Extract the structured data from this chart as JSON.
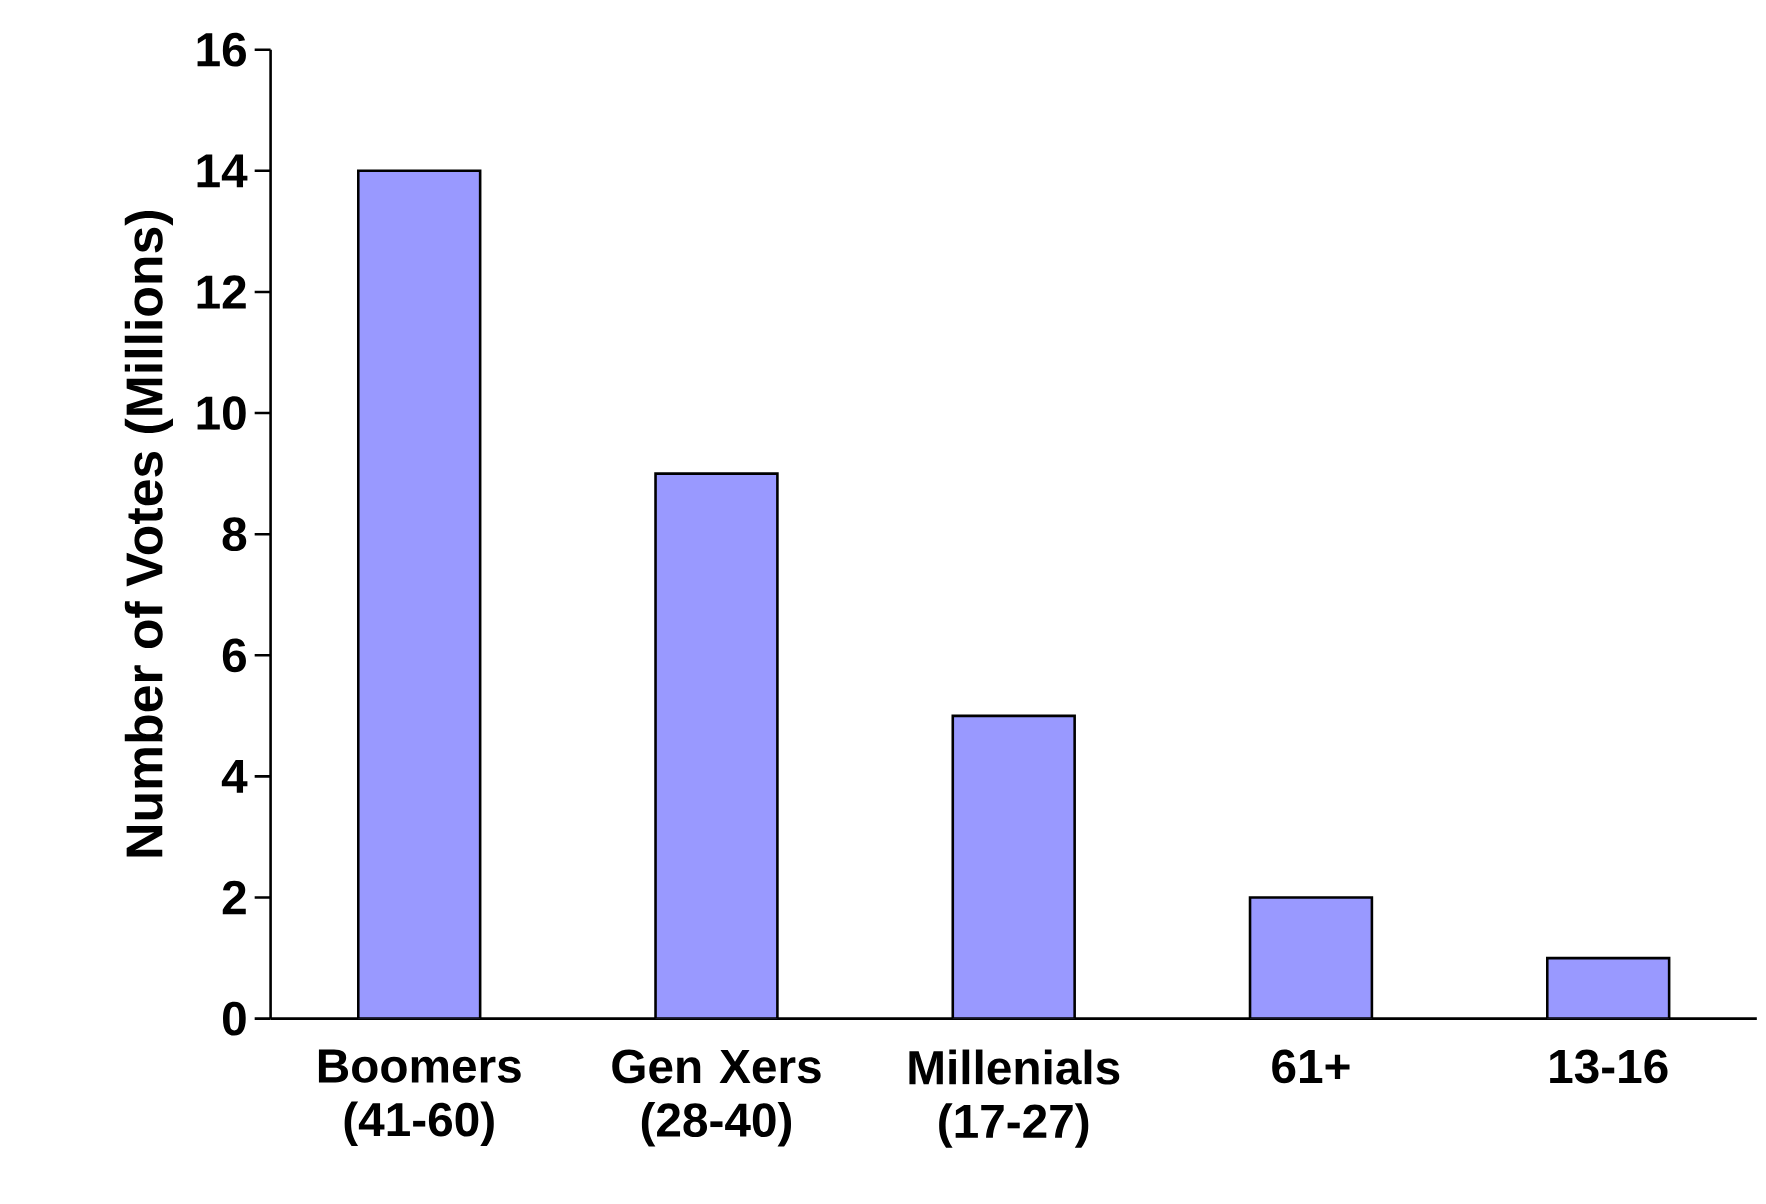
{
  "chart_data": {
    "type": "bar",
    "ylabel": "Number of Votes (Millions)",
    "categories": [
      "Boomers (41-60)",
      "Gen Xers (28-40)",
      "Millenials (17-27)",
      "61+",
      "13-16"
    ],
    "values": [
      14,
      9,
      5,
      2,
      1
    ],
    "color": "#9999ff",
    "ylim": [
      0,
      16
    ],
    "yticks": [
      0,
      2,
      4,
      6,
      8,
      10,
      12,
      14,
      16
    ],
    "grid": false
  }
}
